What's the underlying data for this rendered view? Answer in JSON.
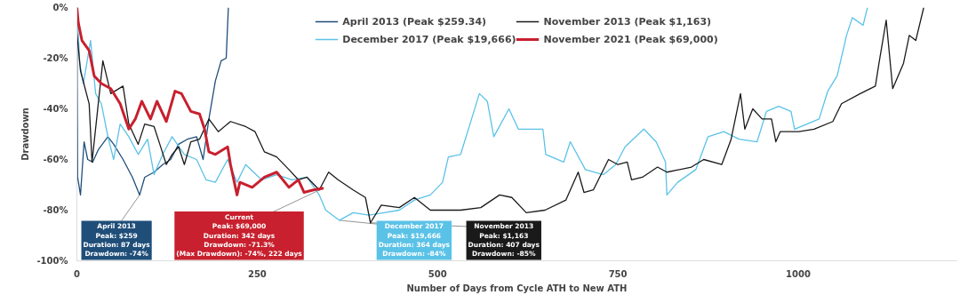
{
  "chart_data": {
    "type": "line",
    "xlabel": "Number of Days from Cycle ATH to New ATH",
    "ylabel": "Drawdown",
    "xlim": [
      0,
      1220
    ],
    "ylim": [
      -100,
      0
    ],
    "xticks": [
      0,
      250,
      500,
      750,
      1000
    ],
    "yticks": [
      {
        "value": 0,
        "label": "0%"
      },
      {
        "value": -20,
        "label": "-20%"
      },
      {
        "value": -40,
        "label": "-40%"
      },
      {
        "value": -60,
        "label": "-60%"
      },
      {
        "value": -80,
        "label": "-80%"
      },
      {
        "value": -100,
        "label": "-100%"
      }
    ],
    "grid": false,
    "legend": "top",
    "marker": "none",
    "line_style": "solid",
    "series": [
      {
        "name": "April 2013 (Peak $259.34)",
        "color": "#1f4e79",
        "x": [
          0,
          1,
          5,
          10,
          15,
          22,
          30,
          43,
          51,
          64,
          77,
          87,
          94,
          107,
          119,
          130,
          141,
          153,
          166,
          175,
          183,
          192,
          200,
          207,
          210
        ],
        "values": [
          0,
          -67,
          -74,
          -53,
          -60,
          -61,
          -56,
          -51,
          -54,
          -60,
          -67,
          -74,
          -67,
          -65,
          -62,
          -60,
          -54,
          -52,
          -51,
          -60,
          -44,
          -29,
          -21,
          -20,
          0
        ]
      },
      {
        "name": "December 2017 (Peak $19,666)",
        "color": "#5bc2e7",
        "x": [
          0,
          4,
          9,
          19,
          26,
          34,
          43,
          51,
          60,
          72,
          85,
          98,
          107,
          119,
          132,
          149,
          166,
          179,
          192,
          209,
          222,
          234,
          256,
          277,
          298,
          319,
          336,
          345,
          364,
          383,
          405,
          426,
          447,
          468,
          490,
          507,
          515,
          532,
          545,
          558,
          569,
          578,
          599,
          612,
          646,
          650,
          675,
          684,
          705,
          730,
          747,
          760,
          786,
          803,
          816,
          818,
          833,
          858,
          875,
          897,
          918,
          943,
          956,
          973,
          990,
          995,
          1012,
          1029,
          1041,
          1054,
          1067,
          1075,
          1090,
          1096
        ],
        "values": [
          0,
          -22,
          -30,
          -13,
          -34,
          -38,
          -51,
          -60,
          -46,
          -51,
          -58,
          -52,
          -66,
          -58,
          -51,
          -58,
          -60,
          -68,
          -69,
          -60,
          -69,
          -62,
          -68,
          -66,
          -68,
          -67,
          -74,
          -80,
          -84,
          -81,
          -82,
          -81,
          -80,
          -76,
          -74,
          -69,
          -59,
          -58,
          -46,
          -34,
          -37,
          -51,
          -40,
          -48,
          -48,
          -58,
          -61,
          -53,
          -64,
          -66,
          -62,
          -55,
          -48,
          -53,
          -61,
          -74,
          -69,
          -64,
          -51,
          -49,
          -52,
          -53,
          -41,
          -39,
          -41,
          -48,
          -46,
          -44,
          -33,
          -27,
          -11,
          -4,
          -7,
          0
        ]
      },
      {
        "name": "November 2013 (Peak $1,163)",
        "color": "#1a1a1a",
        "x": [
          0,
          5,
          17,
          21,
          36,
          47,
          64,
          72,
          85,
          94,
          107,
          115,
          124,
          132,
          141,
          149,
          158,
          170,
          183,
          196,
          213,
          234,
          247,
          260,
          277,
          294,
          307,
          319,
          336,
          349,
          362,
          383,
          400,
          407,
          422,
          447,
          468,
          490,
          511,
          532,
          560,
          586,
          603,
          623,
          649,
          678,
          695,
          703,
          716,
          737,
          750,
          763,
          769,
          784,
          805,
          818,
          852,
          869,
          894,
          907,
          920,
          926,
          937,
          950,
          963,
          969,
          975,
          1001,
          1022,
          1048,
          1060,
          1086,
          1107,
          1112,
          1122,
          1131,
          1146,
          1154,
          1163,
          1174
        ],
        "values": [
          -10,
          -25,
          -38,
          -61,
          -21,
          -34,
          -31,
          -46,
          -54,
          -46,
          -47,
          -54,
          -62,
          -58,
          -55,
          -62,
          -53,
          -52,
          -44,
          -49,
          -45,
          -47,
          -49,
          -57,
          -59,
          -64,
          -68,
          -67,
          -72,
          -65,
          -68,
          -72,
          -75,
          -85,
          -78,
          -79,
          -75,
          -80,
          -80,
          -80,
          -79,
          -74,
          -75,
          -81,
          -80,
          -76,
          -65,
          -73,
          -72,
          -60,
          -62,
          -61,
          -68,
          -67,
          -63,
          -65,
          -63,
          -60,
          -62,
          -52,
          -34,
          -48,
          -40,
          -44,
          -44,
          -53,
          -49,
          -49,
          -48,
          -45,
          -38,
          -34,
          -31,
          -22,
          -5,
          -32,
          -22,
          -11,
          -13,
          0
        ]
      },
      {
        "name": "November 2021 (Peak $69,000)",
        "color": "#c8202e",
        "x": [
          0,
          2,
          7,
          17,
          24,
          34,
          47,
          60,
          72,
          81,
          90,
          102,
          111,
          124,
          136,
          145,
          158,
          170,
          177,
          183,
          192,
          209,
          213,
          222,
          226,
          243,
          260,
          277,
          294,
          307,
          315,
          328,
          342
        ],
        "values": [
          0,
          -6,
          -13,
          -17,
          -27,
          -30,
          -32,
          -38,
          -48,
          -44,
          -37,
          -44,
          -37,
          -45,
          -33,
          -34,
          -41,
          -42,
          -48,
          -57,
          -58,
          -55,
          -62,
          -74,
          -69,
          -71,
          -67,
          -65,
          -71,
          -68,
          -73,
          -72,
          -71.3
        ]
      }
    ],
    "annotations": [
      {
        "text": "April 2013\nPeak: $259\nDuration: 87 days\nDrawdown: -74%",
        "x": 87,
        "y": -74
      },
      {
        "text": "Current\nPeak: $69,000\nDuration: 342 days\nDrawdown: -71.3%\n(Max Drawdown): -74%, 222 days",
        "x": 342,
        "y": -71.3
      },
      {
        "text": "December 2017\nPeak: $19,666\nDuration: 364 days\nDrawdown: -84%",
        "x": 364,
        "y": -84
      },
      {
        "text": "November 2013\nPeak: $1,163\nDuration: 407 days\nDrawdown: -85%",
        "x": 407,
        "y": -85
      }
    ]
  }
}
